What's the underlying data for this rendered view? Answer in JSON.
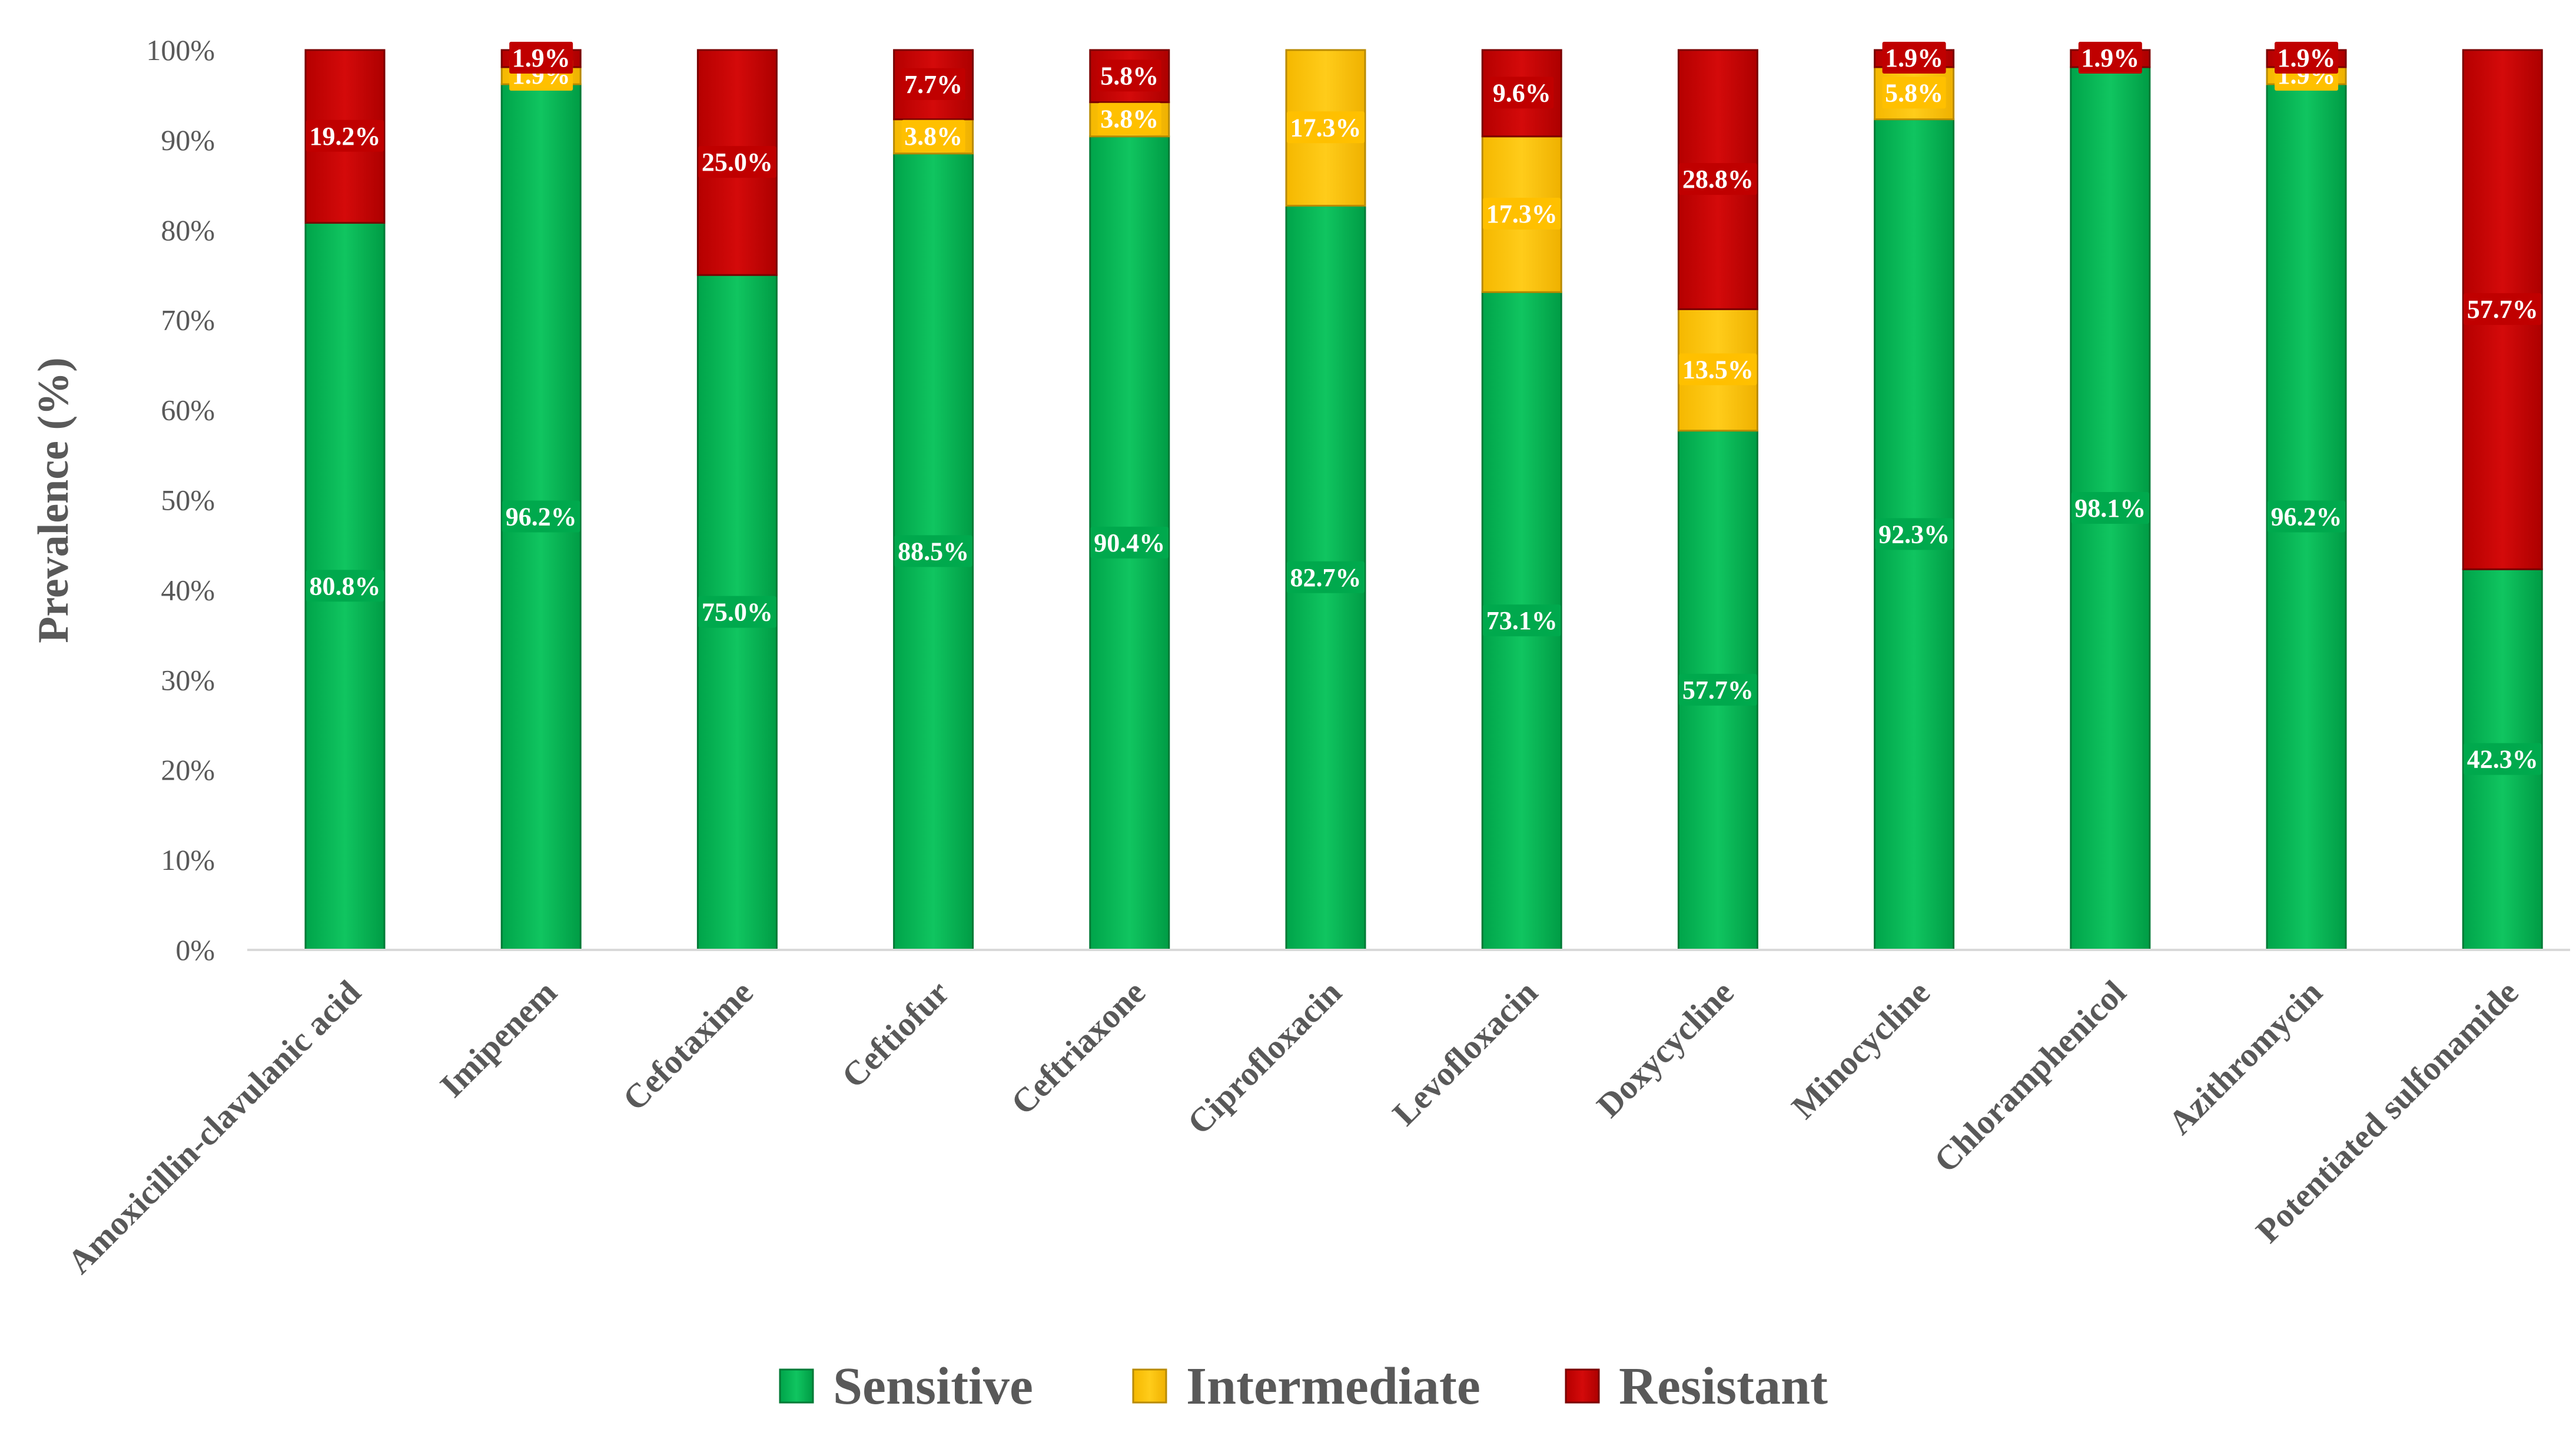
{
  "colors": {
    "sensitive": "#00b050",
    "intermediate": "#ffc000",
    "resistant": "#c00000",
    "axis_text": "#595959",
    "axis_line": "#d9d9d9"
  },
  "chart_data": {
    "type": "bar",
    "stacked": true,
    "title": "",
    "xlabel": "",
    "ylabel": "Prevalence (%)",
    "ylim": [
      0,
      100
    ],
    "y_ticks": [
      "0%",
      "10%",
      "20%",
      "30%",
      "40%",
      "50%",
      "60%",
      "70%",
      "80%",
      "90%",
      "100%"
    ],
    "grid": false,
    "legend_position": "bottom-center",
    "categories": [
      "Amoxicillin-clavulanic acid",
      "Imipenem",
      "Cefotaxime",
      "Ceftiofur",
      "Ceftriaxone",
      "Ciprofloxacin",
      "Levofloxacin",
      "Doxycycline",
      "Minocycline",
      "Chloramphenicol",
      "Azithromycin",
      "Potentiated sulfonamide"
    ],
    "series": [
      {
        "name": "Sensitive",
        "color_key": "sensitive",
        "values": [
          80.8,
          96.2,
          75.0,
          88.5,
          90.4,
          82.7,
          73.1,
          57.7,
          92.3,
          98.1,
          96.2,
          42.3
        ],
        "labels": [
          "80.8%",
          "96.2%",
          "75.0%",
          "88.5%",
          "90.4%",
          "82.7%",
          "73.1%",
          "57.7%",
          "92.3%",
          "98.1%",
          "96.2%",
          "42.3%"
        ]
      },
      {
        "name": "Intermediate",
        "color_key": "intermediate",
        "values": [
          0,
          1.9,
          0,
          3.8,
          3.8,
          17.3,
          17.3,
          13.5,
          5.8,
          0,
          1.9,
          0
        ],
        "labels": [
          "",
          "1.9%",
          "",
          "3.8%",
          "3.8%",
          "17.3%",
          "17.3%",
          "13.5%",
          "5.8%",
          "",
          "1.9%",
          ""
        ]
      },
      {
        "name": "Resistant",
        "color_key": "resistant",
        "values": [
          19.2,
          1.9,
          25.0,
          7.7,
          5.8,
          0,
          9.6,
          28.8,
          1.9,
          1.9,
          1.9,
          57.7
        ],
        "labels": [
          "19.2%",
          "1.9%",
          "25.0%",
          "7.7%",
          "5.8%",
          "",
          "9.6%",
          "28.8%",
          "1.9%",
          "1.9%",
          "1.9%",
          "57.7%"
        ]
      }
    ]
  }
}
